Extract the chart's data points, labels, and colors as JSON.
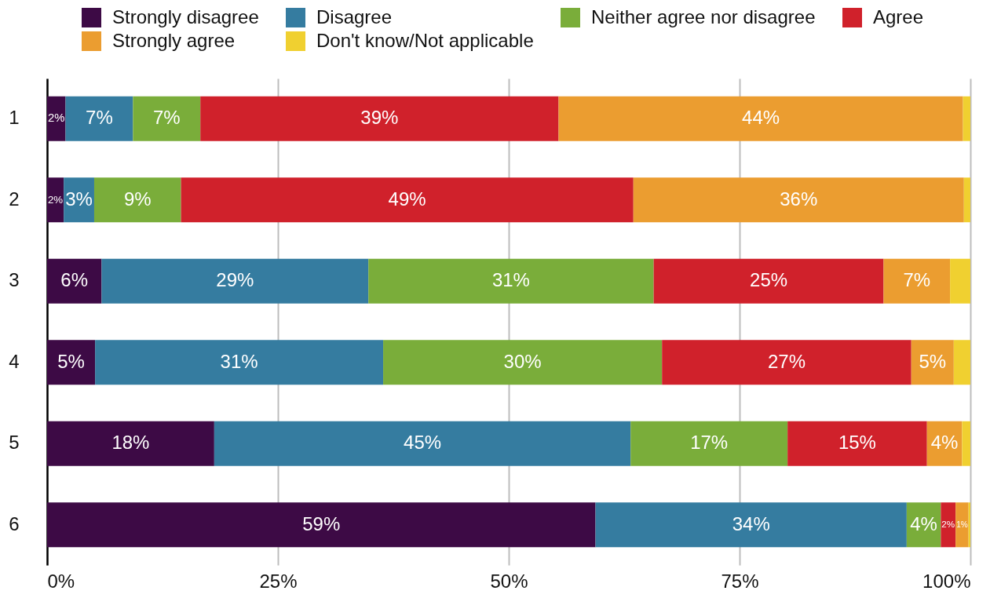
{
  "chart_data": {
    "type": "bar",
    "orientation": "horizontal",
    "stacked": true,
    "categories": [
      "1",
      "2",
      "3",
      "4",
      "5",
      "6"
    ],
    "series": [
      {
        "name": "Strongly disagree",
        "color": "#3d0a45",
        "values": [
          2.0,
          1.8,
          5.9,
          5.2,
          18.1,
          59.4
        ],
        "value_labels": [
          "2%",
          "2%",
          "6%",
          "5%",
          "18%",
          "59%"
        ]
      },
      {
        "name": "Disagree",
        "color": "#357ca0",
        "values": [
          7.3,
          3.3,
          28.9,
          31.2,
          45.1,
          33.7
        ],
        "value_labels": [
          "7%",
          "3%",
          "29%",
          "31%",
          "45%",
          "34%"
        ]
      },
      {
        "name": "Neither agree nor disagree",
        "color": "#7aad3a",
        "values": [
          7.3,
          9.4,
          30.9,
          30.2,
          17.0,
          3.7
        ],
        "value_labels": [
          "7%",
          "9%",
          "31%",
          "30%",
          "17%",
          "4%"
        ]
      },
      {
        "name": "Agree",
        "color": "#d0212b",
        "values": [
          38.8,
          49.0,
          24.9,
          27.0,
          15.1,
          1.6
        ],
        "value_labels": [
          "39%",
          "49%",
          "25%",
          "27%",
          "15%",
          "2%"
        ]
      },
      {
        "name": "Strongly agree",
        "color": "#eb9d30",
        "values": [
          43.8,
          35.8,
          7.2,
          4.6,
          3.8,
          1.4
        ],
        "value_labels": [
          "44%",
          "36%",
          "7%",
          "5%",
          "4%",
          "1%"
        ]
      },
      {
        "name": "Don't know/Not applicable",
        "color": "#f0d030",
        "values": [
          0.8,
          0.7,
          2.2,
          1.8,
          0.9,
          0.2
        ]
      }
    ],
    "xlim": [
      0,
      100
    ],
    "xticks": [
      {
        "value": 0,
        "label": "0%"
      },
      {
        "value": 25,
        "label": "25%"
      },
      {
        "value": 50,
        "label": "50%"
      },
      {
        "value": 75,
        "label": "75%"
      },
      {
        "value": 100,
        "label": "100%"
      }
    ],
    "grid": "x",
    "legend": "top"
  }
}
